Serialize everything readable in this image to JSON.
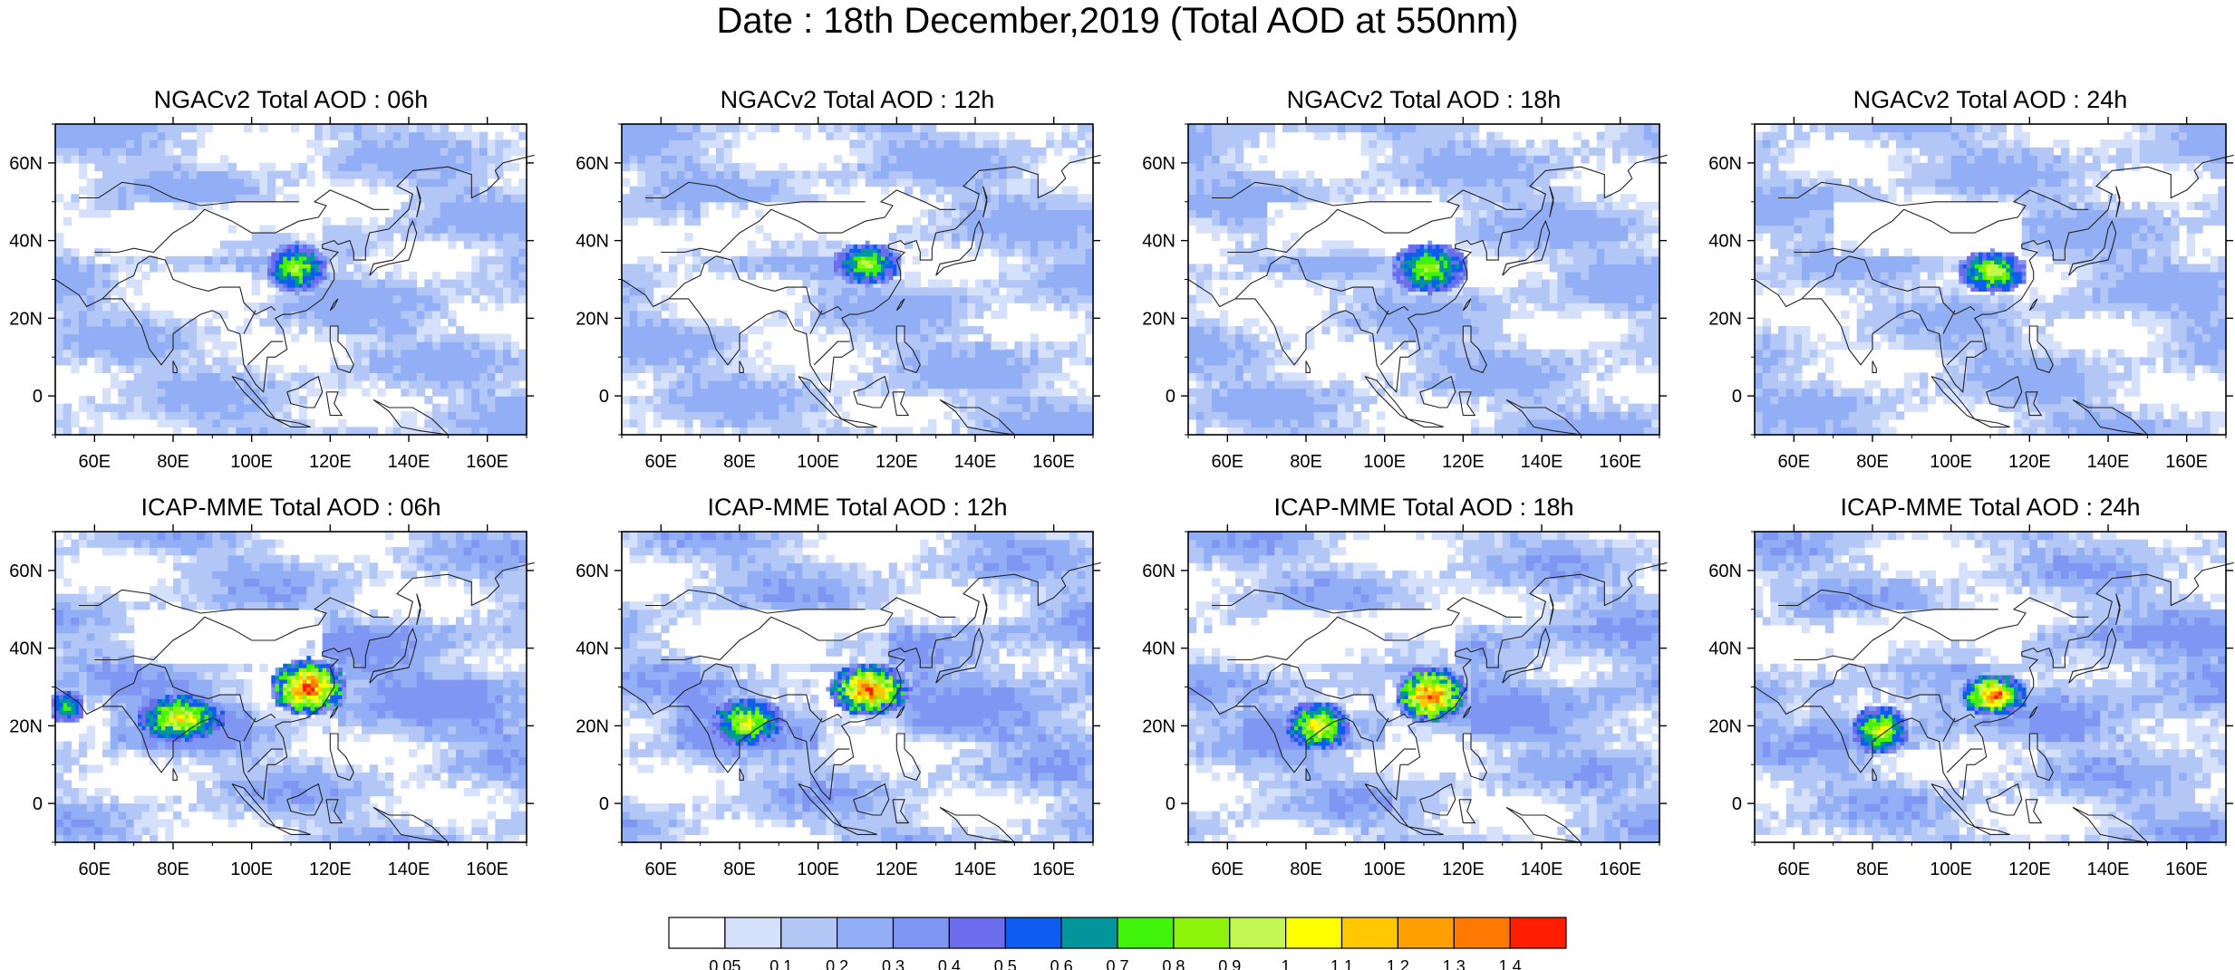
{
  "figure": {
    "title": "Date : 18th December,2019 (Total AOD at 550nm)"
  },
  "chart_data": [
    {
      "type": "heatmap",
      "title": "NGACv2 Total AOD : 06h",
      "model": "NGACv2",
      "forecast_hour": "06h",
      "xlim": [
        50,
        170
      ],
      "ylim": [
        -10,
        70
      ],
      "x_ticks": [
        "60E",
        "80E",
        "100E",
        "120E",
        "140E",
        "160E"
      ],
      "y_ticks": [
        "60N",
        "40N",
        "20N",
        "0"
      ],
      "hotspots": [
        {
          "region": "Eastern China",
          "lon_range": [
            105,
            118
          ],
          "lat_range": [
            28,
            38
          ],
          "max_aod": 0.9
        }
      ]
    },
    {
      "type": "heatmap",
      "title": "NGACv2 Total AOD : 12h",
      "model": "NGACv2",
      "forecast_hour": "12h",
      "xlim": [
        50,
        170
      ],
      "ylim": [
        -10,
        70
      ],
      "x_ticks": [
        "60E",
        "80E",
        "100E",
        "120E",
        "140E",
        "160E"
      ],
      "y_ticks": [
        "60N",
        "40N",
        "20N",
        "0"
      ],
      "hotspots": [
        {
          "region": "Eastern China",
          "lon_range": [
            105,
            120
          ],
          "lat_range": [
            30,
            38
          ],
          "max_aod": 0.9
        }
      ]
    },
    {
      "type": "heatmap",
      "title": "NGACv2 Total AOD : 18h",
      "model": "NGACv2",
      "forecast_hour": "18h",
      "xlim": [
        50,
        170
      ],
      "ylim": [
        -10,
        70
      ],
      "x_ticks": [
        "60E",
        "80E",
        "100E",
        "120E",
        "140E",
        "160E"
      ],
      "y_ticks": [
        "60N",
        "40N",
        "20N",
        "0"
      ],
      "hotspots": [
        {
          "region": "Eastern China",
          "lon_range": [
            103,
            120
          ],
          "lat_range": [
            28,
            38
          ],
          "max_aod": 0.9
        }
      ]
    },
    {
      "type": "heatmap",
      "title": "NGACv2 Total AOD : 24h",
      "model": "NGACv2",
      "forecast_hour": "24h",
      "xlim": [
        50,
        170
      ],
      "ylim": [
        -10,
        70
      ],
      "x_ticks": [
        "60E",
        "80E",
        "100E",
        "120E",
        "140E",
        "160E"
      ],
      "y_ticks": [
        "60N",
        "40N",
        "20N",
        "0"
      ],
      "hotspots": [
        {
          "region": "Eastern China",
          "lon_range": [
            103,
            118
          ],
          "lat_range": [
            28,
            36
          ],
          "max_aod": 1.0
        }
      ]
    },
    {
      "type": "heatmap",
      "title": "ICAP-MME Total AOD : 06h",
      "model": "ICAP-MME",
      "forecast_hour": "06h",
      "xlim": [
        50,
        170
      ],
      "ylim": [
        -10,
        70
      ],
      "x_ticks": [
        "60E",
        "80E",
        "100E",
        "120E",
        "140E",
        "160E"
      ],
      "y_ticks": [
        "60N",
        "40N",
        "20N",
        "0"
      ],
      "hotspots": [
        {
          "region": "Eastern China",
          "lon_range": [
            106,
            123
          ],
          "lat_range": [
            24,
            36
          ],
          "max_aod": 1.4
        },
        {
          "region": "Northern India",
          "lon_range": [
            72,
            92
          ],
          "lat_range": [
            17,
            27
          ],
          "max_aod": 1.1
        },
        {
          "region": "Arabian Sea",
          "lon_range": [
            50,
            56
          ],
          "lat_range": [
            22,
            28
          ],
          "max_aod": 0.7
        }
      ]
    },
    {
      "type": "heatmap",
      "title": "ICAP-MME Total AOD : 12h",
      "model": "ICAP-MME",
      "forecast_hour": "12h",
      "xlim": [
        50,
        170
      ],
      "ylim": [
        -10,
        70
      ],
      "x_ticks": [
        "60E",
        "80E",
        "100E",
        "120E",
        "140E",
        "160E"
      ],
      "y_ticks": [
        "60N",
        "40N",
        "20N",
        "0"
      ],
      "hotspots": [
        {
          "region": "Eastern China",
          "lon_range": [
            104,
            122
          ],
          "lat_range": [
            24,
            35
          ],
          "max_aod": 1.4
        },
        {
          "region": "Northern India",
          "lon_range": [
            74,
            90
          ],
          "lat_range": [
            16,
            26
          ],
          "max_aod": 1.0
        }
      ]
    },
    {
      "type": "heatmap",
      "title": "ICAP-MME Total AOD : 18h",
      "model": "ICAP-MME",
      "forecast_hour": "18h",
      "xlim": [
        50,
        170
      ],
      "ylim": [
        -10,
        70
      ],
      "x_ticks": [
        "60E",
        "80E",
        "100E",
        "120E",
        "140E",
        "160E"
      ],
      "y_ticks": [
        "60N",
        "40N",
        "20N",
        "0"
      ],
      "hotspots": [
        {
          "region": "Eastern China",
          "lon_range": [
            104,
            120
          ],
          "lat_range": [
            22,
            34
          ],
          "max_aod": 1.4
        },
        {
          "region": "Northern India",
          "lon_range": [
            76,
            90
          ],
          "lat_range": [
            15,
            25
          ],
          "max_aod": 1.1
        }
      ]
    },
    {
      "type": "heatmap",
      "title": "ICAP-MME Total AOD : 24h",
      "model": "ICAP-MME",
      "forecast_hour": "24h",
      "xlim": [
        50,
        170
      ],
      "ylim": [
        -10,
        70
      ],
      "x_ticks": [
        "60E",
        "80E",
        "100E",
        "120E",
        "140E",
        "160E"
      ],
      "y_ticks": [
        "60N",
        "40N",
        "20N",
        "0"
      ],
      "hotspots": [
        {
          "region": "Eastern China",
          "lon_range": [
            104,
            118
          ],
          "lat_range": [
            24,
            32
          ],
          "max_aod": 1.4
        },
        {
          "region": "Northern India",
          "lon_range": [
            76,
            88
          ],
          "lat_range": [
            14,
            24
          ],
          "max_aod": 1.0
        }
      ]
    }
  ],
  "colorbar": {
    "levels": [
      "0.05",
      "0.1",
      "0.2",
      "0.3",
      "0.4",
      "0.5",
      "0.6",
      "0.7",
      "0.8",
      "0.9",
      "1",
      "1.1",
      "1.2",
      "1.3",
      "1.4"
    ],
    "colors": [
      "#ffffff",
      "#d5e0fa",
      "#b3c7f7",
      "#92aff5",
      "#7f97f2",
      "#6c6ded",
      "#0f5cf0",
      "#00969c",
      "#41f20a",
      "#8cf40a",
      "#c2f750",
      "#ffff00",
      "#ffc800",
      "#ffa000",
      "#ff7800",
      "#ff1e00"
    ]
  }
}
